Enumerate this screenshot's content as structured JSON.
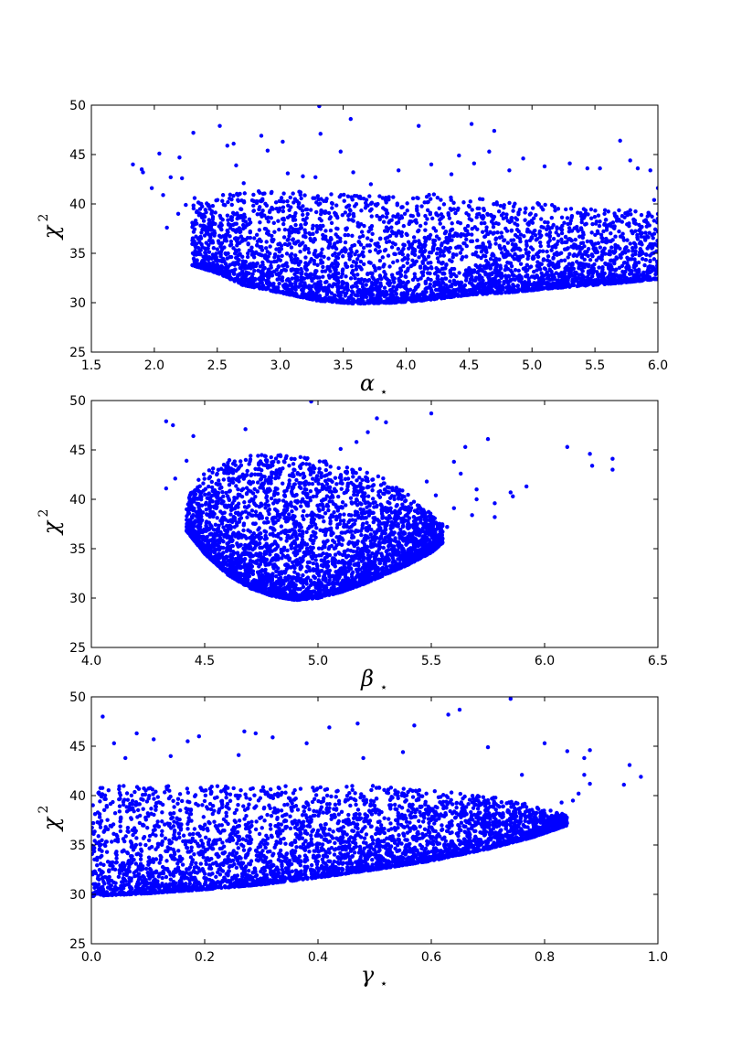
{
  "colors": {
    "marker": "#0000ff",
    "frame": "#000000"
  },
  "chart_data": [
    {
      "type": "scatter",
      "xlabel": "α",
      "xlabel_sub": "⋆",
      "ylabel": "χ",
      "ylabel_sup": "2",
      "xlim": [
        1.5,
        6.0
      ],
      "ylim": [
        25,
        50
      ],
      "xticks": [
        "1.5",
        "2.0",
        "2.5",
        "3.0",
        "3.5",
        "4.0",
        "4.5",
        "5.0",
        "5.5",
        "6.0"
      ],
      "yticks": [
        "25",
        "30",
        "35",
        "40",
        "45",
        "50"
      ],
      "grid": false,
      "series": [
        {
          "values": [
            [
              1.83,
              44.0
            ],
            [
              1.9,
              43.5
            ],
            [
              1.91,
              43.2
            ],
            [
              1.98,
              41.6
            ],
            [
              2.04,
              45.1
            ],
            [
              2.07,
              40.9
            ],
            [
              2.1,
              37.6
            ],
            [
              2.13,
              42.7
            ],
            [
              2.19,
              39.0
            ],
            [
              2.2,
              44.7
            ],
            [
              2.22,
              42.6
            ],
            [
              2.25,
              39.9
            ],
            [
              2.31,
              47.2
            ],
            [
              2.32,
              40.6
            ],
            [
              2.41,
              34.8
            ],
            [
              2.44,
              39.5
            ],
            [
              2.52,
              47.9
            ],
            [
              2.54,
              40.3
            ],
            [
              2.58,
              45.9
            ],
            [
              2.63,
              46.1
            ],
            [
              2.65,
              43.9
            ],
            [
              2.71,
              42.1
            ],
            [
              2.85,
              46.9
            ],
            [
              2.9,
              45.4
            ],
            [
              3.02,
              46.3
            ],
            [
              3.06,
              43.1
            ],
            [
              3.18,
              42.8
            ],
            [
              3.28,
              42.7
            ],
            [
              3.31,
              49.9
            ],
            [
              3.32,
              47.1
            ],
            [
              3.48,
              45.3
            ],
            [
              3.56,
              48.6
            ],
            [
              3.58,
              43.2
            ],
            [
              3.72,
              42.0
            ],
            [
              3.94,
              43.4
            ],
            [
              4.1,
              47.9
            ],
            [
              4.2,
              44.0
            ],
            [
              4.36,
              43.0
            ],
            [
              4.42,
              44.9
            ],
            [
              4.52,
              48.1
            ],
            [
              4.54,
              44.1
            ],
            [
              4.66,
              45.3
            ],
            [
              4.7,
              47.4
            ],
            [
              4.82,
              43.4
            ],
            [
              4.93,
              44.6
            ],
            [
              5.1,
              43.8
            ],
            [
              5.3,
              44.1
            ],
            [
              5.44,
              43.6
            ],
            [
              5.54,
              43.6
            ],
            [
              5.7,
              46.4
            ],
            [
              5.78,
              44.4
            ],
            [
              5.84,
              43.6
            ],
            [
              5.94,
              43.4
            ],
            [
              5.97,
              40.4
            ],
            [
              6.0,
              41.6
            ]
          ],
          "cloud": {
            "description_free_params": "dense envelope",
            "envelope": [
              [
                2.3,
                40.0,
                33.8
              ],
              [
                2.5,
                41.0,
                33.0
              ],
              [
                2.7,
                41.5,
                31.8
              ],
              [
                3.0,
                41.5,
                31.0
              ],
              [
                3.3,
                41.0,
                30.2
              ],
              [
                3.6,
                41.0,
                29.9
              ],
              [
                3.9,
                41.0,
                30.0
              ],
              [
                4.2,
                41.0,
                30.3
              ],
              [
                4.5,
                40.5,
                30.8
              ],
              [
                4.8,
                40.5,
                31.0
              ],
              [
                5.1,
                40.0,
                31.4
              ],
              [
                5.4,
                39.5,
                31.7
              ],
              [
                5.7,
                39.5,
                32.0
              ],
              [
                6.0,
                39.0,
                32.4
              ]
            ],
            "count": 3800
          }
        }
      ]
    },
    {
      "type": "scatter",
      "xlabel": "β",
      "xlabel_sub": "⋆",
      "ylabel": "χ",
      "ylabel_sup": "2",
      "xlim": [
        4.0,
        6.5
      ],
      "ylim": [
        25,
        50
      ],
      "xticks": [
        "4.0",
        "4.5",
        "5.0",
        "5.5",
        "6.0",
        "6.5"
      ],
      "yticks": [
        "25",
        "30",
        "35",
        "40",
        "45",
        "50"
      ],
      "grid": false,
      "series": [
        {
          "values": [
            [
              4.33,
              47.9
            ],
            [
              4.36,
              47.5
            ],
            [
              4.45,
              46.4
            ],
            [
              4.68,
              47.1
            ],
            [
              4.97,
              49.9
            ],
            [
              5.26,
              48.2
            ],
            [
              5.3,
              47.8
            ],
            [
              5.5,
              48.7
            ],
            [
              5.22,
              46.8
            ],
            [
              5.17,
              45.8
            ],
            [
              5.1,
              45.1
            ],
            [
              5.65,
              45.3
            ],
            [
              5.75,
              46.1
            ],
            [
              5.6,
              43.8
            ],
            [
              5.63,
              42.6
            ],
            [
              5.7,
              41.0
            ],
            [
              5.7,
              40.0
            ],
            [
              5.68,
              38.4
            ],
            [
              5.78,
              38.2
            ],
            [
              5.78,
              39.6
            ],
            [
              5.85,
              40.7
            ],
            [
              5.86,
              40.3
            ],
            [
              5.92,
              41.3
            ],
            [
              6.1,
              45.3
            ],
            [
              6.2,
              44.6
            ],
            [
              6.21,
              43.4
            ],
            [
              6.3,
              44.1
            ],
            [
              6.3,
              43.0
            ],
            [
              5.57,
              37.2
            ],
            [
              5.6,
              39.1
            ],
            [
              5.48,
              41.8
            ],
            [
              5.52,
              40.4
            ],
            [
              4.33,
              41.1
            ],
            [
              4.37,
              42.1
            ],
            [
              4.42,
              43.9
            ]
          ],
          "cloud": {
            "description_free_params": "dense envelope",
            "envelope": [
              [
                4.42,
                40.0,
                36.8
              ],
              [
                4.5,
                43.0,
                34.5
              ],
              [
                4.6,
                44.0,
                32.4
              ],
              [
                4.7,
                44.5,
                31.0
              ],
              [
                4.8,
                44.5,
                30.2
              ],
              [
                4.9,
                44.5,
                29.8
              ],
              [
                5.0,
                44.0,
                30.0
              ],
              [
                5.1,
                43.5,
                30.6
              ],
              [
                5.2,
                43.0,
                31.4
              ],
              [
                5.3,
                42.0,
                32.4
              ],
              [
                5.4,
                40.5,
                33.4
              ],
              [
                5.5,
                38.5,
                34.6
              ],
              [
                5.55,
                37.5,
                35.6
              ]
            ],
            "count": 3800
          }
        }
      ]
    },
    {
      "type": "scatter",
      "xlabel": "γ",
      "xlabel_sub": "⋆",
      "ylabel": "χ",
      "ylabel_sup": "2",
      "xlim": [
        0.0,
        1.0
      ],
      "ylim": [
        25,
        50
      ],
      "xticks": [
        "0.0",
        "0.2",
        "0.4",
        "0.6",
        "0.8",
        "1.0"
      ],
      "yticks": [
        "25",
        "30",
        "35",
        "40",
        "45",
        "50"
      ],
      "grid": false,
      "series": [
        {
          "values": [
            [
              0.02,
              48.0
            ],
            [
              0.04,
              45.3
            ],
            [
              0.08,
              46.3
            ],
            [
              0.11,
              45.7
            ],
            [
              0.17,
              45.5
            ],
            [
              0.19,
              46.0
            ],
            [
              0.27,
              46.5
            ],
            [
              0.29,
              46.3
            ],
            [
              0.32,
              45.9
            ],
            [
              0.38,
              45.3
            ],
            [
              0.42,
              46.9
            ],
            [
              0.47,
              47.3
            ],
            [
              0.57,
              47.1
            ],
            [
              0.63,
              48.2
            ],
            [
              0.65,
              48.7
            ],
            [
              0.74,
              49.8
            ],
            [
              0.76,
              42.1
            ],
            [
              0.8,
              45.3
            ],
            [
              0.84,
              44.5
            ],
            [
              0.87,
              43.8
            ],
            [
              0.88,
              44.6
            ],
            [
              0.87,
              42.1
            ],
            [
              0.88,
              41.2
            ],
            [
              0.86,
              40.2
            ],
            [
              0.83,
              39.3
            ],
            [
              0.85,
              39.5
            ],
            [
              0.94,
              41.1
            ],
            [
              0.95,
              43.1
            ],
            [
              0.97,
              41.9
            ],
            [
              0.7,
              44.9
            ],
            [
              0.55,
              44.4
            ],
            [
              0.48,
              43.8
            ],
            [
              0.26,
              44.1
            ],
            [
              0.14,
              44.0
            ],
            [
              0.06,
              43.8
            ]
          ],
          "cloud": {
            "description_free_params": "dense envelope",
            "envelope": [
              [
                0.0,
                41.0,
                29.8
              ],
              [
                0.1,
                41.0,
                30.1
              ],
              [
                0.2,
                41.0,
                30.5
              ],
              [
                0.3,
                41.0,
                31.0
              ],
              [
                0.4,
                41.0,
                31.7
              ],
              [
                0.5,
                41.0,
                32.5
              ],
              [
                0.6,
                40.5,
                33.4
              ],
              [
                0.7,
                40.0,
                34.6
              ],
              [
                0.78,
                39.0,
                35.8
              ],
              [
                0.84,
                38.0,
                37.0
              ]
            ],
            "count": 3800
          }
        }
      ]
    }
  ]
}
